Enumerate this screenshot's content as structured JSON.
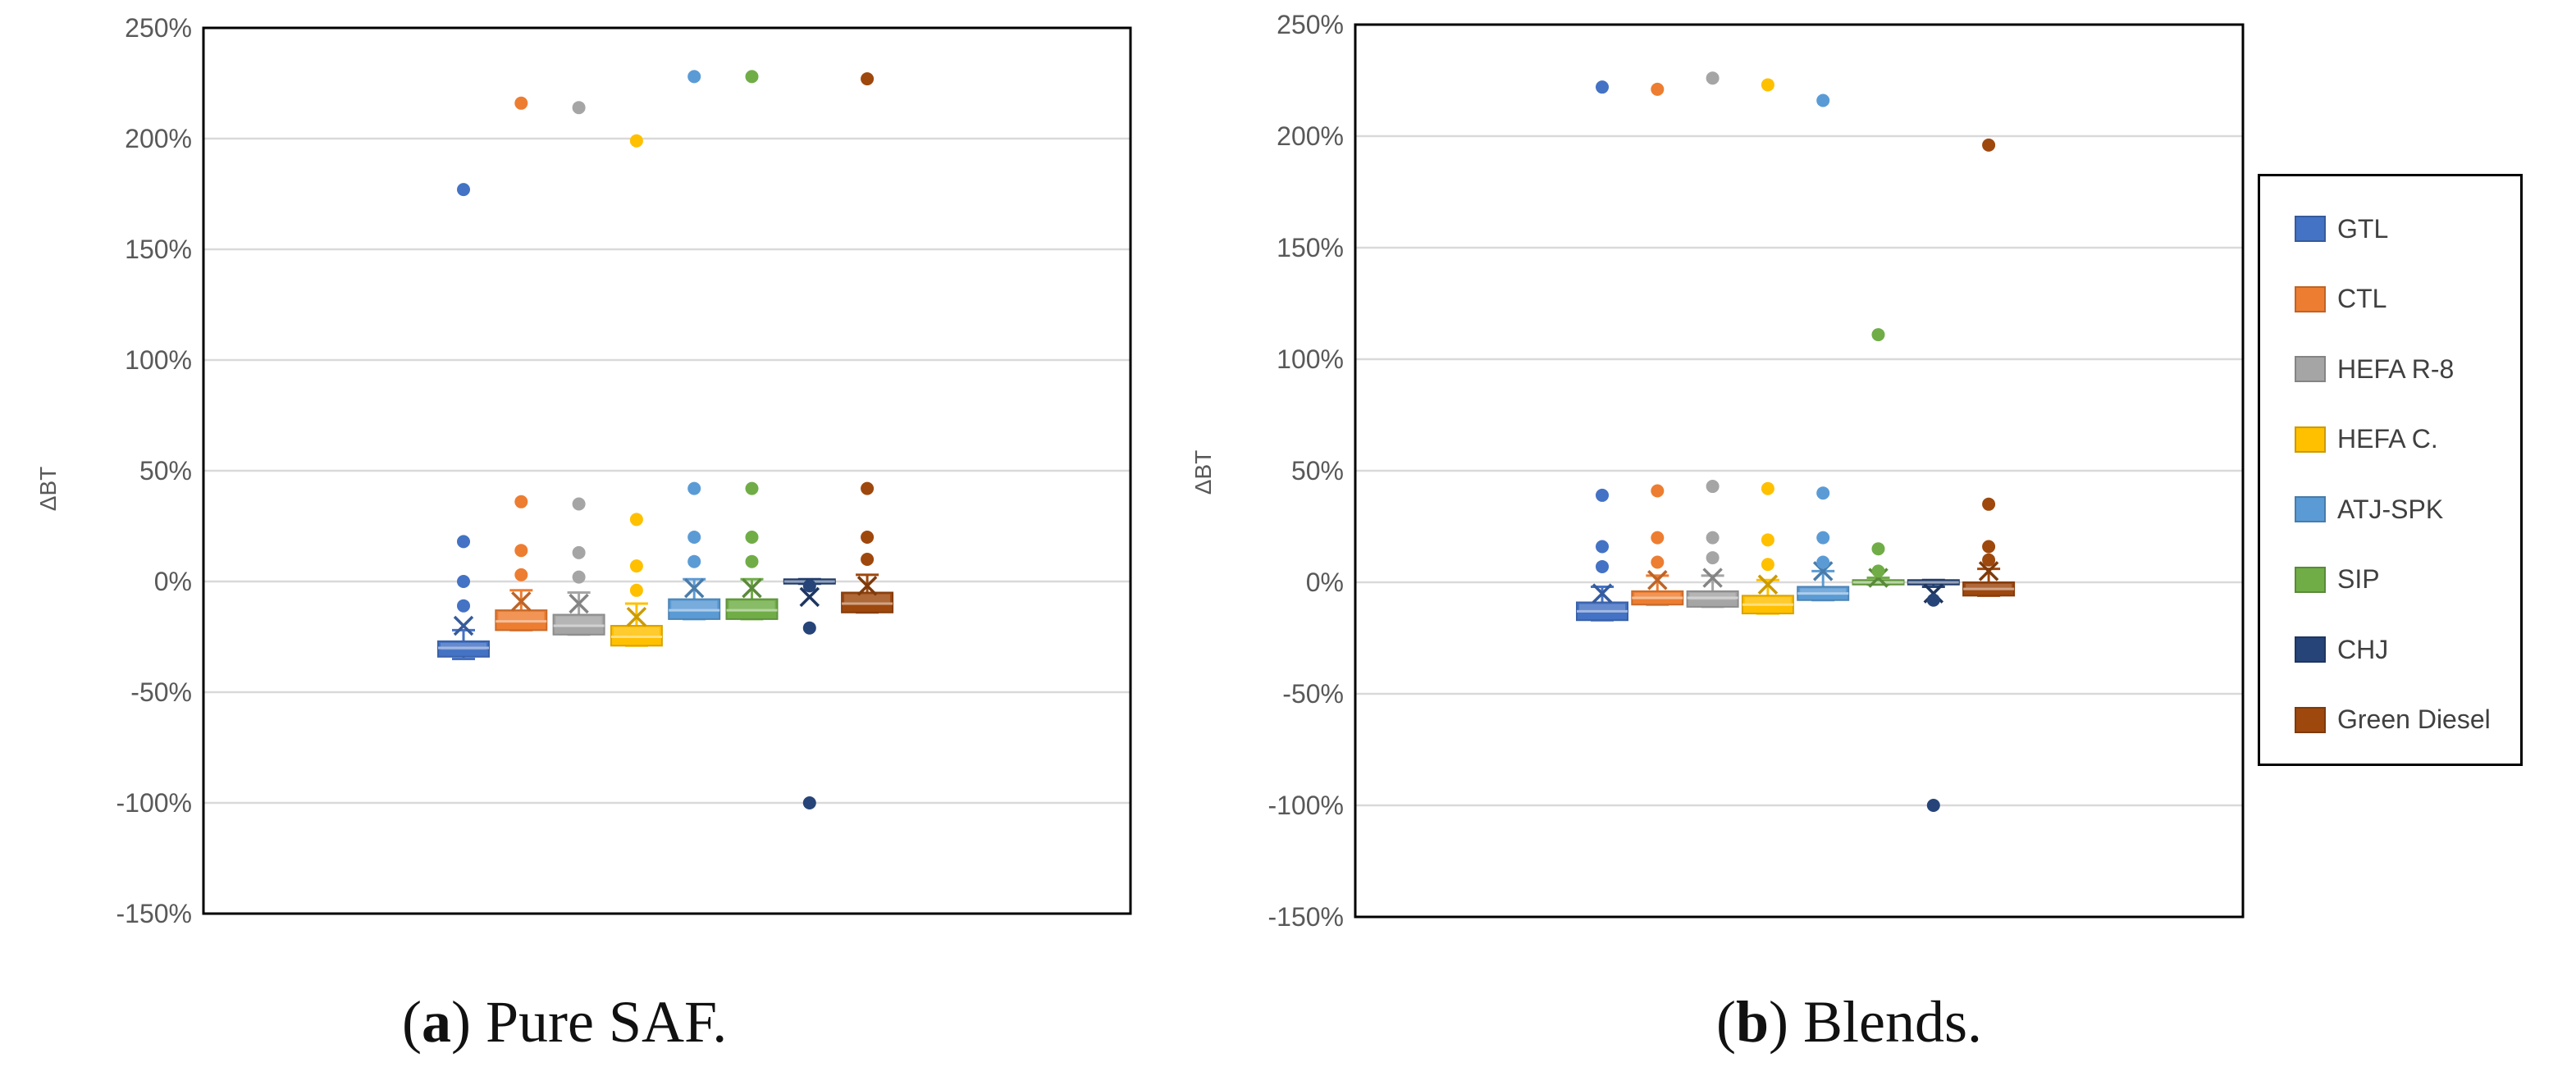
{
  "figure": {
    "caption_a": {
      "letter": "a",
      "text": " Pure SAF."
    },
    "caption_b": {
      "letter": "b",
      "text": " Blends."
    }
  },
  "legend": {
    "items": [
      {
        "label": "GTL",
        "color": "#4472C4"
      },
      {
        "label": "CTL",
        "color": "#ED7D31"
      },
      {
        "label": "HEFA R-8",
        "color": "#A5A5A5"
      },
      {
        "label": "HEFA C.",
        "color": "#FFC000"
      },
      {
        "label": "ATJ-SPK",
        "color": "#5B9BD5"
      },
      {
        "label": "SIP",
        "color": "#70AD47"
      },
      {
        "label": "CHJ",
        "color": "#264478"
      },
      {
        "label": "Green Diesel",
        "color": "#9E480E"
      }
    ]
  },
  "chart_data": [
    {
      "type": "box",
      "title": "",
      "ylabel": "ΔBT",
      "xlabel": "",
      "ylim": [
        -150,
        250
      ],
      "yticks": [
        "-150%",
        "-100%",
        "-50%",
        "0%",
        "50%",
        "100%",
        "150%",
        "200%",
        "250%"
      ],
      "grid": true,
      "series": [
        {
          "name": "GTL",
          "q1": -34,
          "median": -30,
          "q3": -27,
          "whisker_low": -35,
          "whisker_high": -22,
          "mean": -20,
          "outliers": [
            177,
            18,
            0,
            -11
          ]
        },
        {
          "name": "CTL",
          "q1": -22,
          "median": -18,
          "q3": -13,
          "whisker_low": -22,
          "whisker_high": -4,
          "mean": -9,
          "outliers": [
            216,
            36,
            14,
            3
          ]
        },
        {
          "name": "HEFA R-8",
          "q1": -24,
          "median": -20,
          "q3": -15,
          "whisker_low": -24,
          "whisker_high": -5,
          "mean": -10,
          "outliers": [
            214,
            35,
            13,
            2
          ]
        },
        {
          "name": "HEFA C.",
          "q1": -29,
          "median": -25,
          "q3": -20,
          "whisker_low": -29,
          "whisker_high": -10,
          "mean": -16,
          "outliers": [
            199,
            28,
            7,
            -4
          ]
        },
        {
          "name": "ATJ-SPK",
          "q1": -17,
          "median": -13,
          "q3": -8,
          "whisker_low": -17,
          "whisker_high": 1,
          "mean": -3,
          "outliers": [
            228,
            42,
            20,
            9
          ]
        },
        {
          "name": "SIP",
          "q1": -17,
          "median": -13,
          "q3": -8,
          "whisker_low": -17,
          "whisker_high": 1,
          "mean": -3,
          "outliers": [
            228,
            42,
            20,
            9
          ]
        },
        {
          "name": "CHJ",
          "q1": -1,
          "median": 0,
          "q3": 1,
          "whisker_low": -1,
          "whisker_high": 1,
          "mean": -7,
          "outliers": [
            -2,
            -21,
            -100
          ]
        },
        {
          "name": "Green Diesel",
          "q1": -14,
          "median": -10,
          "q3": -5,
          "whisker_low": -14,
          "whisker_high": 3,
          "mean": -2,
          "outliers": [
            227,
            42,
            20,
            10
          ]
        }
      ]
    },
    {
      "type": "box",
      "title": "",
      "ylabel": "ΔBT",
      "xlabel": "",
      "ylim": [
        -150,
        250
      ],
      "yticks": [
        "-150%",
        "-100%",
        "-50%",
        "0%",
        "50%",
        "100%",
        "150%",
        "200%",
        "250%"
      ],
      "grid": true,
      "series": [
        {
          "name": "GTL",
          "q1": -17,
          "median": -13,
          "q3": -9,
          "whisker_low": -17,
          "whisker_high": -2,
          "mean": -5,
          "outliers": [
            222,
            39,
            16,
            7
          ]
        },
        {
          "name": "CTL",
          "q1": -10,
          "median": -7,
          "q3": -4,
          "whisker_low": -10,
          "whisker_high": 3,
          "mean": 1,
          "outliers": [
            221,
            41,
            20,
            9
          ]
        },
        {
          "name": "HEFA R-8",
          "q1": -11,
          "median": -7,
          "q3": -4,
          "whisker_low": -11,
          "whisker_high": 3,
          "mean": 2,
          "outliers": [
            226,
            43,
            20,
            11
          ]
        },
        {
          "name": "HEFA C.",
          "q1": -14,
          "median": -10,
          "q3": -6,
          "whisker_low": -14,
          "whisker_high": 1,
          "mean": -1,
          "outliers": [
            223,
            42,
            19,
            8
          ]
        },
        {
          "name": "ATJ-SPK",
          "q1": -8,
          "median": -5,
          "q3": -2,
          "whisker_low": -8,
          "whisker_high": 5,
          "mean": 5,
          "outliers": [
            216,
            40,
            20,
            9
          ]
        },
        {
          "name": "SIP",
          "q1": -1,
          "median": 0,
          "q3": 1,
          "whisker_low": -1,
          "whisker_high": 2,
          "mean": 2,
          "outliers": [
            111,
            15,
            5
          ]
        },
        {
          "name": "CHJ",
          "q1": -1,
          "median": 0,
          "q3": 1,
          "whisker_low": -2,
          "whisker_high": 1,
          "mean": -5,
          "outliers": [
            -8,
            -100
          ]
        },
        {
          "name": "Green Diesel",
          "q1": -6,
          "median": -3,
          "q3": 0,
          "whisker_low": -6,
          "whisker_high": 6,
          "mean": 5,
          "outliers": [
            196,
            35,
            16,
            10
          ]
        }
      ]
    }
  ]
}
